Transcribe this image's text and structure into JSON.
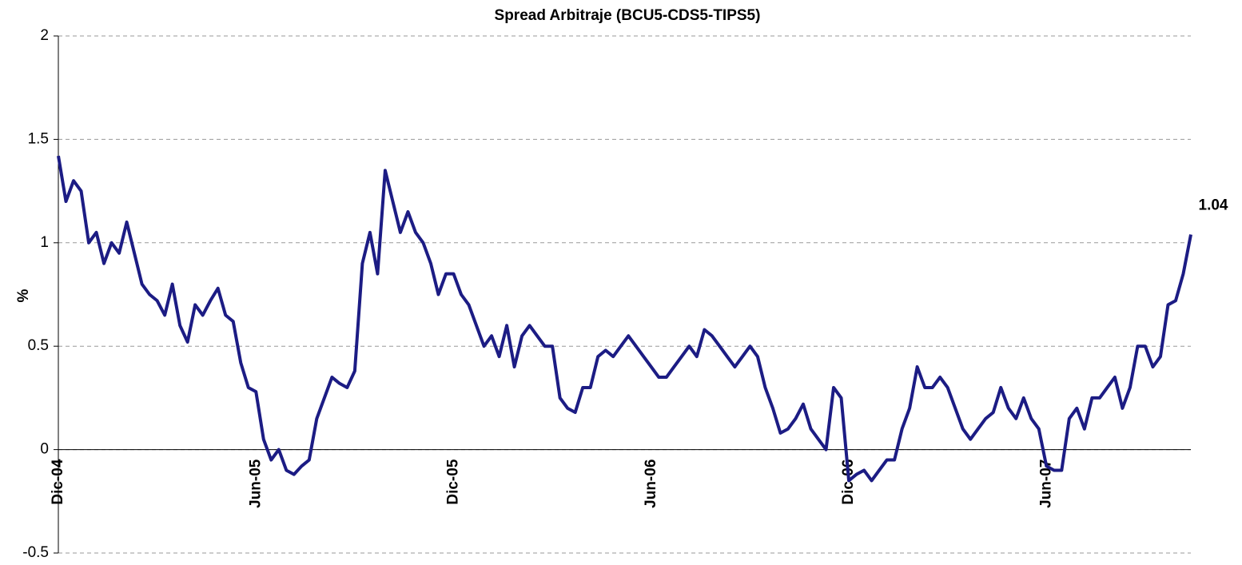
{
  "chart_data": {
    "type": "line",
    "title": "Spread Arbitraje (BCU5-CDS5-TIPS5)",
    "ylabel": "%",
    "color": "#1c1c84",
    "grid": true,
    "ylim": [
      -0.5,
      2
    ],
    "yticks": [
      -0.5,
      0,
      0.5,
      1,
      1.5,
      2
    ],
    "categories": [
      "Dic-04",
      null,
      null,
      null,
      null,
      null,
      null,
      null,
      null,
      null,
      null,
      null,
      null,
      null,
      null,
      null,
      null,
      null,
      null,
      null,
      null,
      null,
      null,
      null,
      null,
      null,
      "Jun-05",
      null,
      null,
      null,
      null,
      null,
      null,
      null,
      null,
      null,
      null,
      null,
      null,
      null,
      null,
      null,
      null,
      null,
      null,
      null,
      null,
      null,
      null,
      null,
      null,
      null,
      "Dic-05",
      null,
      null,
      null,
      null,
      null,
      null,
      null,
      null,
      null,
      null,
      null,
      null,
      null,
      null,
      null,
      null,
      null,
      null,
      null,
      null,
      null,
      null,
      null,
      null,
      null,
      "Jun-06",
      null,
      null,
      null,
      null,
      null,
      null,
      null,
      null,
      null,
      null,
      null,
      null,
      null,
      null,
      null,
      null,
      null,
      null,
      null,
      null,
      null,
      null,
      null,
      null,
      null,
      "Dic-06",
      null,
      null,
      null,
      null,
      null,
      null,
      null,
      null,
      null,
      null,
      null,
      null,
      null,
      null,
      null,
      null,
      null,
      null,
      null,
      null,
      null,
      null,
      null,
      null,
      null,
      "Jun-07",
      null,
      null,
      null,
      null,
      null,
      null,
      null,
      null,
      null,
      null,
      null,
      null,
      null,
      null,
      null,
      null,
      null,
      null,
      null
    ],
    "values": [
      1.42,
      1.2,
      1.3,
      1.25,
      1.0,
      1.05,
      0.9,
      1.0,
      0.95,
      1.1,
      0.95,
      0.8,
      0.75,
      0.72,
      0.65,
      0.8,
      0.6,
      0.52,
      0.7,
      0.65,
      0.72,
      0.78,
      0.65,
      0.62,
      0.42,
      0.3,
      0.28,
      0.05,
      -0.05,
      0.0,
      -0.1,
      -0.12,
      -0.08,
      -0.05,
      0.15,
      0.25,
      0.35,
      0.32,
      0.3,
      0.38,
      0.9,
      1.05,
      0.85,
      1.35,
      1.2,
      1.05,
      1.15,
      1.05,
      1.0,
      0.9,
      0.75,
      0.85,
      0.85,
      0.75,
      0.7,
      0.6,
      0.5,
      0.55,
      0.45,
      0.6,
      0.4,
      0.55,
      0.6,
      0.55,
      0.5,
      0.5,
      0.25,
      0.2,
      0.18,
      0.3,
      0.3,
      0.45,
      0.48,
      0.45,
      0.5,
      0.55,
      0.5,
      0.45,
      0.4,
      0.35,
      0.35,
      0.4,
      0.45,
      0.5,
      0.45,
      0.58,
      0.55,
      0.5,
      0.45,
      0.4,
      0.45,
      0.5,
      0.45,
      0.3,
      0.2,
      0.08,
      0.1,
      0.15,
      0.22,
      0.1,
      0.05,
      0.0,
      0.3,
      0.25,
      -0.15,
      -0.12,
      -0.1,
      -0.15,
      -0.1,
      -0.05,
      -0.05,
      0.1,
      0.2,
      0.4,
      0.3,
      0.3,
      0.35,
      0.3,
      0.2,
      0.1,
      0.05,
      0.1,
      0.15,
      0.18,
      0.3,
      0.2,
      0.15,
      0.25,
      0.15,
      0.1,
      -0.08,
      -0.1,
      -0.1,
      0.15,
      0.2,
      0.1,
      0.25,
      0.25,
      0.3,
      0.35,
      0.2,
      0.3,
      0.5,
      0.5,
      0.4,
      0.45,
      0.7,
      0.72,
      0.85,
      1.04
    ]
  }
}
